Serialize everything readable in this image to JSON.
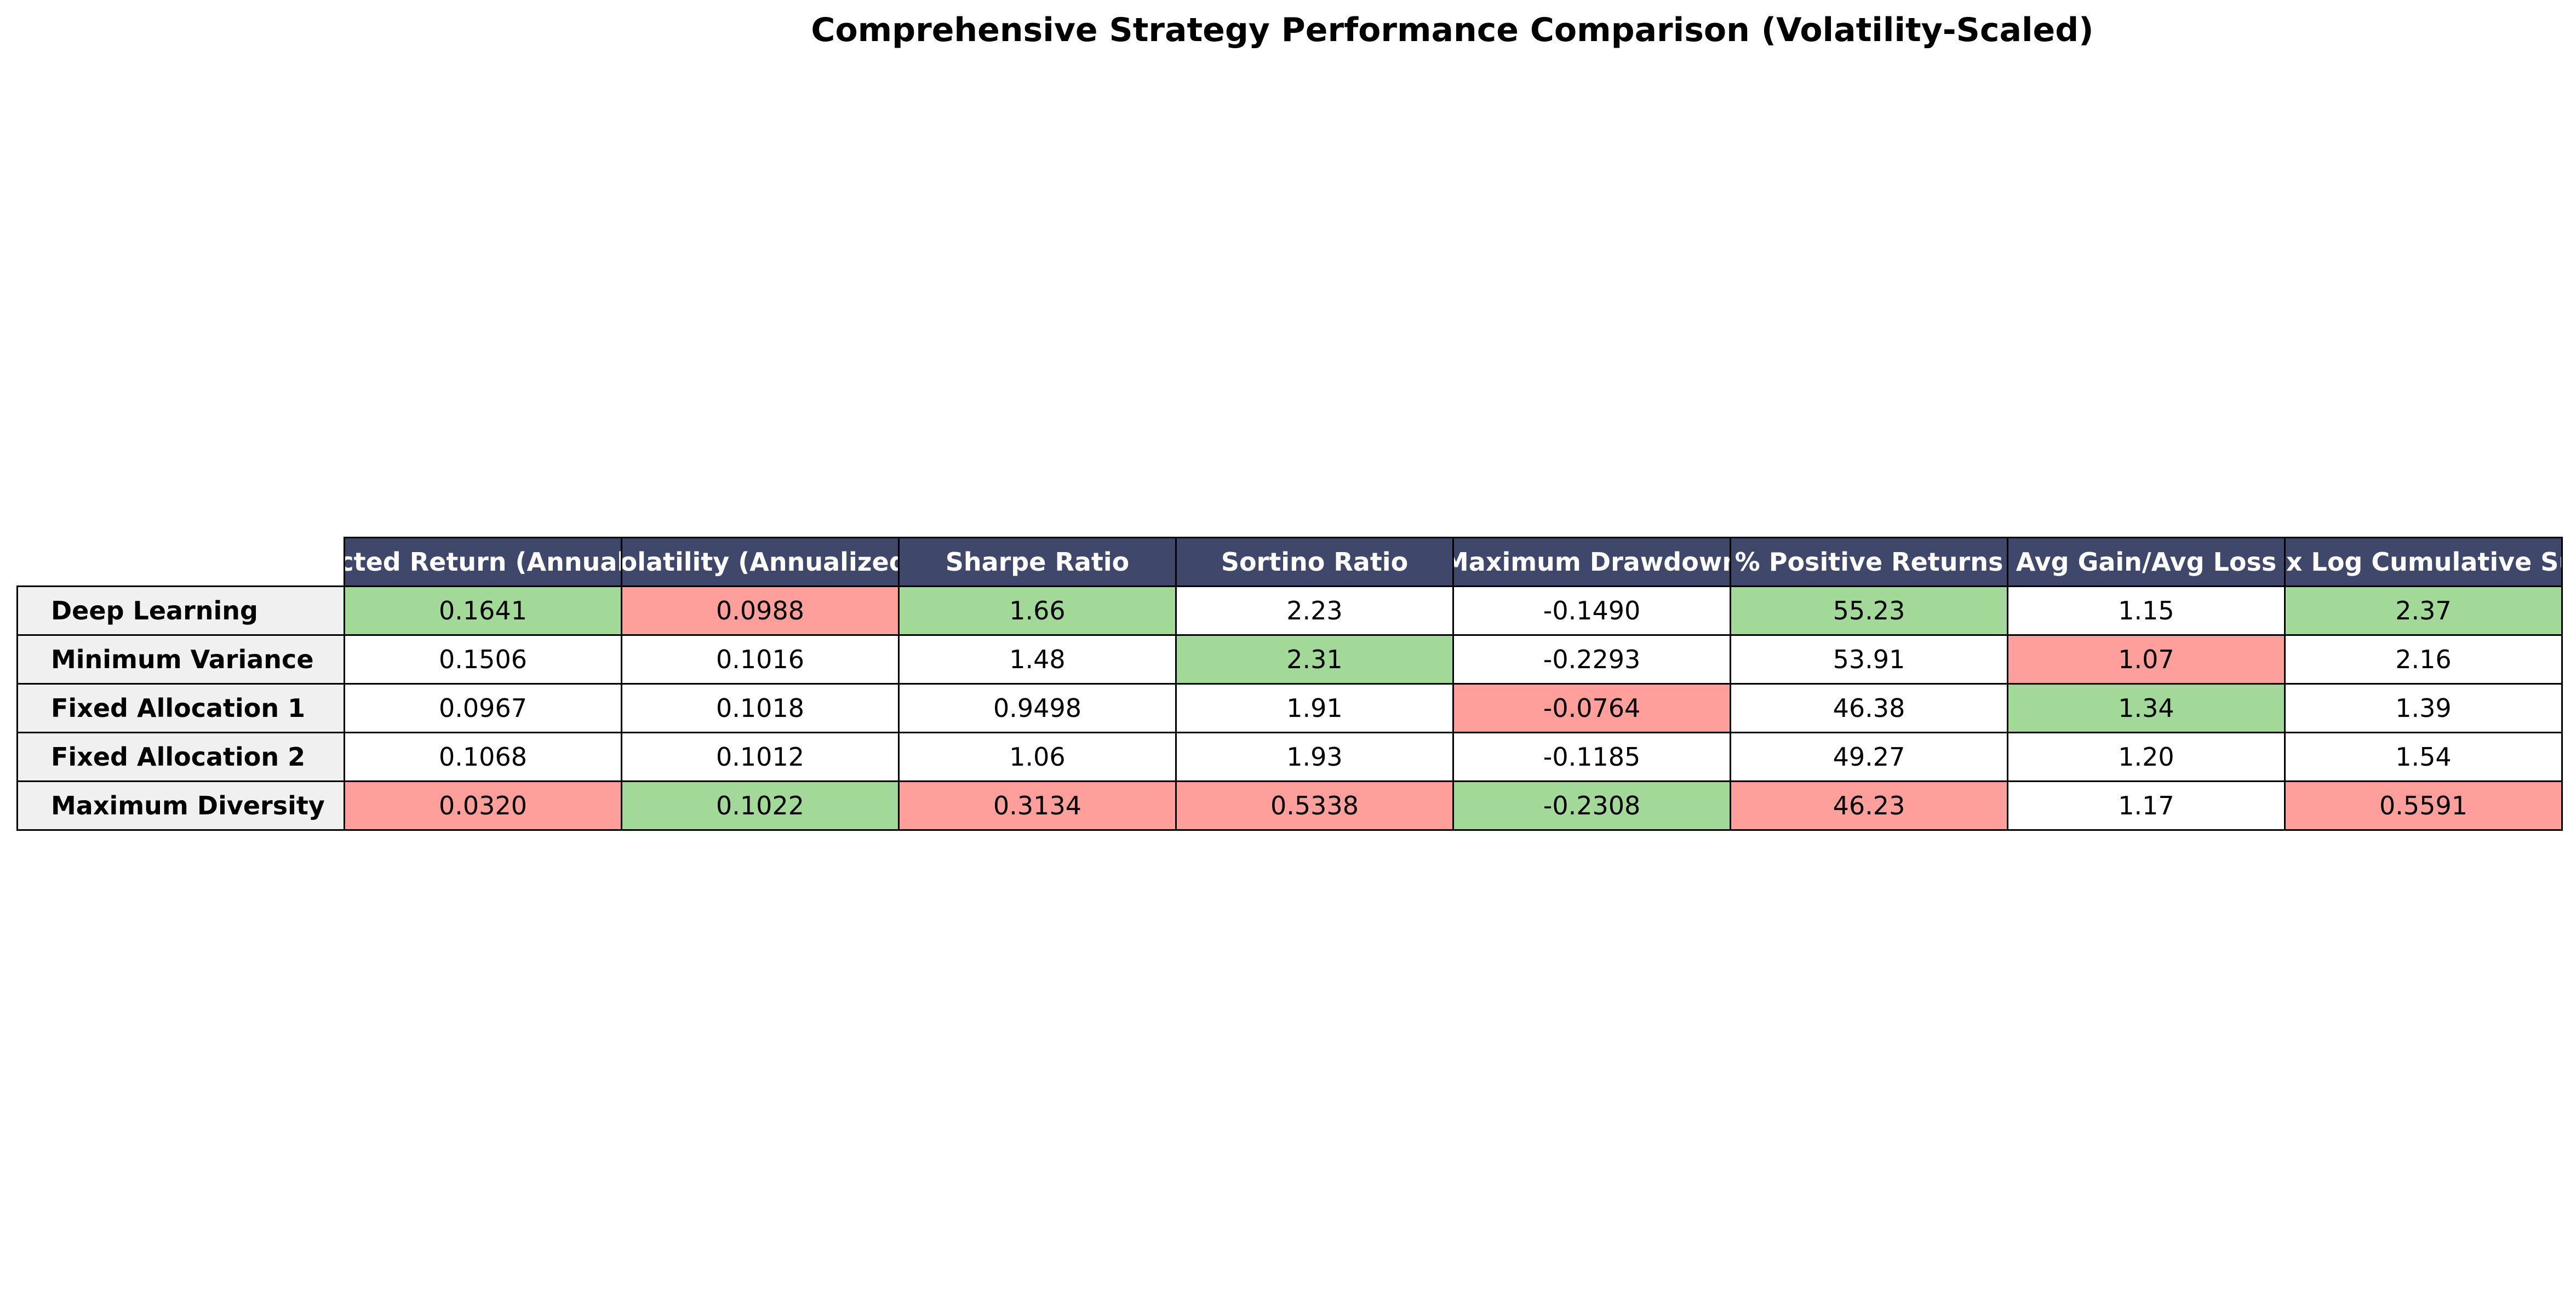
{
  "chart_data": {
    "type": "table",
    "title": "Comprehensive Strategy Performance Comparison (Volatility-Scaled)",
    "columns": [
      "Expected Return (Annualized)",
      "Volatility (Annualized)",
      "Sharpe Ratio",
      "Sortino Ratio",
      "Maximum Drawdown",
      "% Positive Returns",
      "Avg Gain/Avg Loss",
      "Max Log Cumulative Sum"
    ],
    "rows": [
      {
        "name": "Deep Learning",
        "values": [
          "0.1641",
          "0.0988",
          "1.66",
          "2.23",
          "-0.1490",
          "55.23",
          "1.15",
          "2.37"
        ],
        "highlight": [
          "best",
          "worst",
          "best",
          "none",
          "none",
          "best",
          "none",
          "best"
        ]
      },
      {
        "name": "Minimum Variance",
        "values": [
          "0.1506",
          "0.1016",
          "1.48",
          "2.31",
          "-0.2293",
          "53.91",
          "1.07",
          "2.16"
        ],
        "highlight": [
          "none",
          "none",
          "none",
          "best",
          "none",
          "none",
          "worst",
          "none"
        ]
      },
      {
        "name": "Fixed Allocation 1",
        "values": [
          "0.0967",
          "0.1018",
          "0.9498",
          "1.91",
          "-0.0764",
          "46.38",
          "1.34",
          "1.39"
        ],
        "highlight": [
          "none",
          "none",
          "none",
          "none",
          "worst",
          "none",
          "best",
          "none"
        ]
      },
      {
        "name": "Fixed Allocation 2",
        "values": [
          "0.1068",
          "0.1012",
          "1.06",
          "1.93",
          "-0.1185",
          "49.27",
          "1.20",
          "1.54"
        ],
        "highlight": [
          "none",
          "none",
          "none",
          "none",
          "none",
          "none",
          "none",
          "none"
        ]
      },
      {
        "name": "Maximum Diversity",
        "values": [
          "0.0320",
          "0.1022",
          "0.3134",
          "0.5338",
          "-0.2308",
          "46.23",
          "1.17",
          "0.5591"
        ],
        "highlight": [
          "worst",
          "best",
          "worst",
          "worst",
          "best",
          "worst",
          "none",
          "worst"
        ]
      }
    ],
    "colors": {
      "header_bg": "#3f476b",
      "header_text": "#ffffff",
      "row_header_bg": "#f0f0f0",
      "best": "#a2d998",
      "worst": "#ff9f9c",
      "neutral": "#ffffff"
    }
  }
}
